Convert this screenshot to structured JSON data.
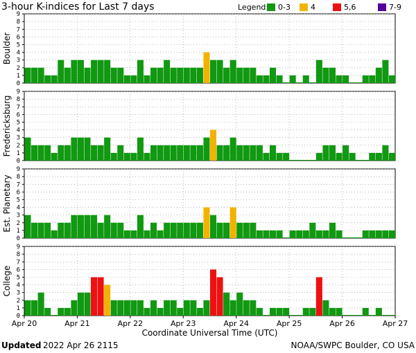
{
  "chart_data": {
    "type": "bar",
    "title": "3-hour K-indices for Last 7 days",
    "xlabel": "Coordinate Universal Time (UTC)",
    "x_ticks": [
      "Apr 20",
      "Apr 21",
      "Apr 22",
      "Apr 23",
      "Apr 24",
      "Apr 25",
      "Apr 26",
      "Apr 27"
    ],
    "y_ticks": [
      0,
      1,
      2,
      3,
      4,
      5,
      6,
      7,
      8,
      9
    ],
    "ylim": [
      0,
      9
    ],
    "bins_per_day": 8,
    "grid": true,
    "legend": {
      "label": "Legend:",
      "placement": "top-right",
      "items": [
        {
          "label": "0-3",
          "color": "#119911"
        },
        {
          "label": "4",
          "color": "#f2b300"
        },
        {
          "label": "5,6",
          "color": "#ee1111"
        },
        {
          "label": "7-9",
          "color": "#550099"
        }
      ]
    },
    "series": [
      {
        "name": "Boulder",
        "values": [
          2,
          2,
          2,
          1,
          1,
          3,
          2,
          3,
          3,
          2,
          3,
          3,
          3,
          2,
          2,
          1,
          1,
          3,
          1,
          2,
          2,
          3,
          2,
          2,
          2,
          2,
          2,
          4,
          3,
          3,
          2,
          3,
          2,
          2,
          2,
          1,
          1,
          2,
          1,
          0,
          1,
          0,
          1,
          0,
          3,
          2,
          2,
          1,
          1,
          0,
          0,
          1,
          1,
          2,
          3,
          1,
          0
        ]
      },
      {
        "name": "Fredericksburg",
        "values": [
          3,
          2,
          2,
          2,
          1,
          2,
          2,
          3,
          3,
          3,
          2,
          2,
          3,
          1,
          2,
          1,
          1,
          3,
          1,
          2,
          2,
          2,
          2,
          2,
          2,
          2,
          2,
          3,
          4,
          2,
          2,
          3,
          2,
          2,
          2,
          2,
          1,
          2,
          1,
          1,
          0,
          0,
          0,
          0,
          1,
          2,
          2,
          1,
          2,
          1,
          0,
          0,
          1,
          1,
          2,
          1,
          1,
          0
        ]
      },
      {
        "name": "Est. Planetary",
        "values": [
          3,
          2,
          2,
          2,
          1,
          2,
          2,
          3,
          3,
          3,
          3,
          2,
          3,
          2,
          2,
          1,
          1,
          3,
          1,
          2,
          1,
          2,
          2,
          2,
          2,
          2,
          2,
          4,
          3,
          2,
          2,
          4,
          2,
          2,
          2,
          1,
          1,
          1,
          1,
          0,
          1,
          1,
          1,
          2,
          1,
          1,
          2,
          1,
          0,
          0,
          0,
          1,
          1,
          1,
          1,
          1,
          1
        ]
      },
      {
        "name": "College",
        "values": [
          2,
          2,
          3,
          1,
          0,
          1,
          1,
          2,
          3,
          3,
          5,
          5,
          4,
          2,
          2,
          2,
          2,
          2,
          1,
          2,
          1,
          2,
          2,
          1,
          2,
          2,
          1,
          2,
          6,
          5,
          3,
          2,
          3,
          2,
          2,
          1,
          0,
          1,
          1,
          1,
          0,
          0,
          1,
          1,
          5,
          2,
          1,
          1,
          0,
          0,
          0,
          1,
          0,
          1,
          0,
          0,
          0,
          0
        ]
      }
    ]
  },
  "footer": {
    "updated_label": "Updated",
    "updated_value": "2022 Apr 26 2115",
    "credit": "NOAA/SWPC Boulder, CO USA"
  }
}
